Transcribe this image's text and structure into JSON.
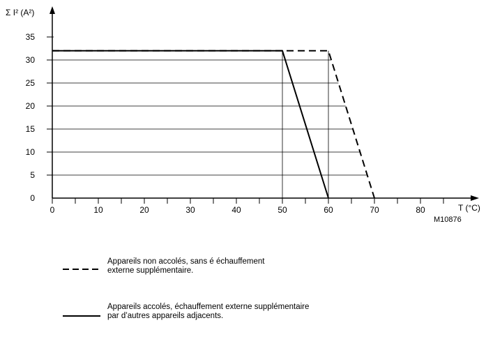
{
  "chart_data": {
    "type": "line",
    "ylabel": "Σ  I² (A²)",
    "xlabel": "T (°C)",
    "xlim": [
      0,
      90
    ],
    "ylim": [
      0,
      35
    ],
    "xticks": [
      0,
      10,
      20,
      30,
      40,
      50,
      60,
      70,
      80
    ],
    "yticks": [
      0,
      5,
      10,
      15,
      20,
      25,
      30,
      35
    ],
    "grid": "horizontal",
    "series": [
      {
        "name": "Appareils non accolés, sans é échauffement externe supplémentaire.",
        "style": "dashed",
        "points": [
          [
            0,
            32
          ],
          [
            60,
            32
          ],
          [
            70,
            0
          ]
        ]
      },
      {
        "name": "Appareils accolés, échauffement externe supplémentaire par d’autres appareils adjacents.",
        "style": "solid",
        "points": [
          [
            0,
            32
          ],
          [
            50,
            32
          ],
          [
            60,
            0
          ]
        ]
      }
    ]
  },
  "figure_ref": "M10876",
  "legend": {
    "dashed": {
      "line1": "Appareils non accolés, sans é échauffement",
      "line2": "externe supplémentaire."
    },
    "solid": {
      "line1": "Appareils accolés, échauffement externe supplémentaire",
      "line2": "par d’autres appareils adjacents."
    }
  },
  "colors": {
    "line": "#000000",
    "grid": "#000000"
  }
}
